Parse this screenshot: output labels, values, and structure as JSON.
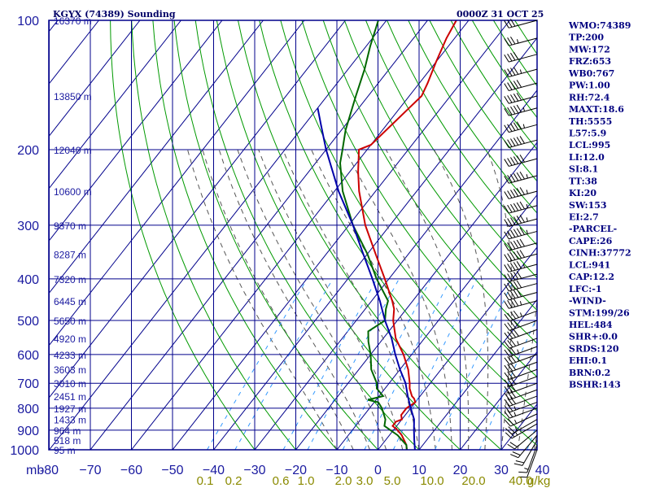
{
  "header": {
    "station": "KGYX (74389) Sounding",
    "valid_time": "0000Z 31 OCT 25"
  },
  "colors": {
    "frame": "#00008b",
    "isotherm": "#00008b",
    "dry_adiabat": "#009900",
    "moist_adiabat": "#555555",
    "mixing_ratio": "#3399ff",
    "temperature": "#cc0000",
    "dewpoint": "#006600",
    "parcel": "#0000aa",
    "wind": "#000000"
  },
  "chart_data": {
    "type": "line",
    "chart_kind": "skew-T log-P",
    "y_axis_unit": "mb",
    "x_axis_unit": "C",
    "pressure_ticks": [
      100,
      200,
      300,
      400,
      500,
      600,
      700,
      800,
      900,
      1000
    ],
    "pressure_tick_labels": [
      "100",
      "200",
      "300",
      "400",
      "500",
      "600",
      "700",
      "800",
      "900",
      "1000"
    ],
    "temperature_ticks": [
      -80,
      -70,
      -60,
      -50,
      -40,
      -30,
      -20,
      -10,
      0,
      10,
      20,
      30,
      40
    ],
    "temperature_tick_labels": [
      "-80",
      "−70",
      "−60",
      "−50",
      "−40",
      "−30",
      "−20",
      "−10",
      "0",
      "10",
      "20",
      "30",
      "40"
    ],
    "x_axis_label": "mb",
    "mixing_ratio_labels": [
      "0.1",
      "0.2",
      "0.6",
      "1.0",
      "2.0",
      "3.0",
      "5.0",
      "10.0",
      "20.0",
      "40.0"
    ],
    "mixing_ratio_unit": "g/kg",
    "altitude_labels": [
      {
        "p": 100,
        "text": "16370 m"
      },
      {
        "p": 150,
        "text": "13850 m"
      },
      {
        "p": 200,
        "text": "12040 m"
      },
      {
        "p": 250,
        "text": "10600 m"
      },
      {
        "p": 300,
        "text": "9370 m"
      },
      {
        "p": 350,
        "text": "8287 m"
      },
      {
        "p": 400,
        "text": "7320 m"
      },
      {
        "p": 450,
        "text": "6445 m"
      },
      {
        "p": 500,
        "text": "5650 m"
      },
      {
        "p": 550,
        "text": "4920 m"
      },
      {
        "p": 600,
        "text": "4233 m"
      },
      {
        "p": 650,
        "text": "3603 m"
      },
      {
        "p": 700,
        "text": "3010 m"
      },
      {
        "p": 750,
        "text": "2451 m"
      },
      {
        "p": 800,
        "text": "1927 m"
      },
      {
        "p": 850,
        "text": "1433 m"
      },
      {
        "p": 900,
        "text": "964 m"
      },
      {
        "p": 950,
        "text": "518 m"
      },
      {
        "p": 1000,
        "text": "95 m"
      }
    ],
    "series": [
      {
        "key": "temperature",
        "points": [
          [
            1000,
            7
          ],
          [
            975,
            6
          ],
          [
            925,
            3
          ],
          [
            900,
            1
          ],
          [
            880,
            -1
          ],
          [
            860,
            -1
          ],
          [
            850,
            0
          ],
          [
            830,
            -1
          ],
          [
            800,
            -1
          ],
          [
            775,
            0
          ],
          [
            760,
            -1
          ],
          [
            750,
            -2
          ],
          [
            720,
            -4
          ],
          [
            700,
            -5
          ],
          [
            650,
            -8
          ],
          [
            600,
            -12
          ],
          [
            550,
            -17
          ],
          [
            500,
            -21
          ],
          [
            470,
            -23
          ],
          [
            450,
            -25
          ],
          [
            400,
            -31
          ],
          [
            350,
            -38
          ],
          [
            300,
            -46
          ],
          [
            250,
            -54
          ],
          [
            225,
            -58
          ],
          [
            200,
            -62
          ],
          [
            195,
            -60
          ],
          [
            150,
            -57
          ],
          [
            140,
            -58
          ],
          [
            125,
            -60
          ],
          [
            110,
            -62
          ],
          [
            100,
            -63
          ]
        ]
      },
      {
        "key": "dewpoint",
        "points": [
          [
            1000,
            7
          ],
          [
            975,
            6
          ],
          [
            925,
            2
          ],
          [
            880,
            -3
          ],
          [
            850,
            -4
          ],
          [
            800,
            -7
          ],
          [
            775,
            -9
          ],
          [
            765,
            -12
          ],
          [
            750,
            -9
          ],
          [
            720,
            -12
          ],
          [
            700,
            -13
          ],
          [
            650,
            -17
          ],
          [
            600,
            -20
          ],
          [
            560,
            -23
          ],
          [
            530,
            -25
          ],
          [
            500,
            -23
          ],
          [
            470,
            -25
          ],
          [
            450,
            -26
          ],
          [
            400,
            -33
          ],
          [
            350,
            -40
          ],
          [
            300,
            -49
          ],
          [
            250,
            -58
          ],
          [
            215,
            -64
          ],
          [
            200,
            -66
          ],
          [
            180,
            -69
          ],
          [
            150,
            -73
          ],
          [
            130,
            -76
          ],
          [
            115,
            -79
          ],
          [
            100,
            -82
          ]
        ]
      },
      {
        "key": "parcel",
        "points": [
          [
            1000,
            9
          ],
          [
            950,
            7
          ],
          [
            900,
            5
          ],
          [
            850,
            3
          ],
          [
            800,
            0
          ],
          [
            750,
            -3
          ],
          [
            700,
            -6
          ],
          [
            650,
            -10
          ],
          [
            600,
            -14
          ],
          [
            550,
            -18
          ],
          [
            500,
            -23
          ],
          [
            450,
            -28
          ],
          [
            400,
            -34
          ],
          [
            350,
            -41
          ],
          [
            300,
            -49
          ],
          [
            250,
            -59
          ],
          [
            200,
            -70
          ],
          [
            175,
            -76
          ],
          [
            160,
            -80
          ]
        ]
      }
    ],
    "wind_barbs": [
      {
        "p": 1000,
        "dir": 200,
        "spd": 10
      },
      {
        "p": 975,
        "dir": 200,
        "spd": 15
      },
      {
        "p": 950,
        "dir": 210,
        "spd": 20
      },
      {
        "p": 925,
        "dir": 220,
        "spd": 20
      },
      {
        "p": 900,
        "dir": 230,
        "spd": 20
      },
      {
        "p": 870,
        "dir": 240,
        "spd": 25
      },
      {
        "p": 850,
        "dir": 240,
        "spd": 25
      },
      {
        "p": 825,
        "dir": 245,
        "spd": 25
      },
      {
        "p": 800,
        "dir": 250,
        "spd": 25
      },
      {
        "p": 775,
        "dir": 250,
        "spd": 25
      },
      {
        "p": 750,
        "dir": 250,
        "spd": 30
      },
      {
        "p": 725,
        "dir": 250,
        "spd": 30
      },
      {
        "p": 700,
        "dir": 250,
        "spd": 30
      },
      {
        "p": 675,
        "dir": 250,
        "spd": 30
      },
      {
        "p": 650,
        "dir": 250,
        "spd": 30
      },
      {
        "p": 625,
        "dir": 250,
        "spd": 30
      },
      {
        "p": 600,
        "dir": 250,
        "spd": 35
      },
      {
        "p": 575,
        "dir": 250,
        "spd": 35
      },
      {
        "p": 550,
        "dir": 250,
        "spd": 35
      },
      {
        "p": 525,
        "dir": 250,
        "spd": 40
      },
      {
        "p": 500,
        "dir": 250,
        "spd": 40
      },
      {
        "p": 475,
        "dir": 250,
        "spd": 45
      },
      {
        "p": 450,
        "dir": 255,
        "spd": 45
      },
      {
        "p": 430,
        "dir": 255,
        "spd": 50
      },
      {
        "p": 410,
        "dir": 255,
        "spd": 50
      },
      {
        "p": 390,
        "dir": 255,
        "spd": 50
      },
      {
        "p": 370,
        "dir": 255,
        "spd": 55
      },
      {
        "p": 350,
        "dir": 255,
        "spd": 60
      },
      {
        "p": 330,
        "dir": 255,
        "spd": 60
      },
      {
        "p": 310,
        "dir": 255,
        "spd": 65
      },
      {
        "p": 290,
        "dir": 255,
        "spd": 65
      },
      {
        "p": 270,
        "dir": 255,
        "spd": 65
      },
      {
        "p": 250,
        "dir": 255,
        "spd": 65
      },
      {
        "p": 230,
        "dir": 255,
        "spd": 65
      },
      {
        "p": 210,
        "dir": 255,
        "spd": 60
      },
      {
        "p": 190,
        "dir": 255,
        "spd": 60
      },
      {
        "p": 175,
        "dir": 255,
        "spd": 55
      },
      {
        "p": 160,
        "dir": 255,
        "spd": 55
      },
      {
        "p": 150,
        "dir": 255,
        "spd": 50
      },
      {
        "p": 140,
        "dir": 255,
        "spd": 50
      },
      {
        "p": 130,
        "dir": 255,
        "spd": 45
      },
      {
        "p": 120,
        "dir": 255,
        "spd": 40
      },
      {
        "p": 110,
        "dir": 255,
        "spd": 35
      },
      {
        "p": 100,
        "dir": 255,
        "spd": 30
      }
    ]
  },
  "indices": [
    "WMO:74389",
    "TP:200",
    "MW:172",
    "FRZ:653",
    "WB0:767",
    "PW:1.00",
    "RH:72.4",
    "MAXT:18.6",
    "TH:5555",
    "L57:5.9",
    "LCL:995",
    "LI:12.0",
    "SI:8.1",
    "TT:38",
    "KI:20",
    "SW:153",
    "EI:2.7",
    "-PARCEL-",
    "CAPE:26",
    "CINH:37772",
    "LCL:941",
    "CAP:12.2",
    "LFC:-1",
    "-WIND-",
    "STM:199/26",
    "HEL:484",
    "SHR+:0.0",
    "SRDS:120",
    "EHI:0.1",
    "BRN:0.2",
    "BSHR:143"
  ]
}
